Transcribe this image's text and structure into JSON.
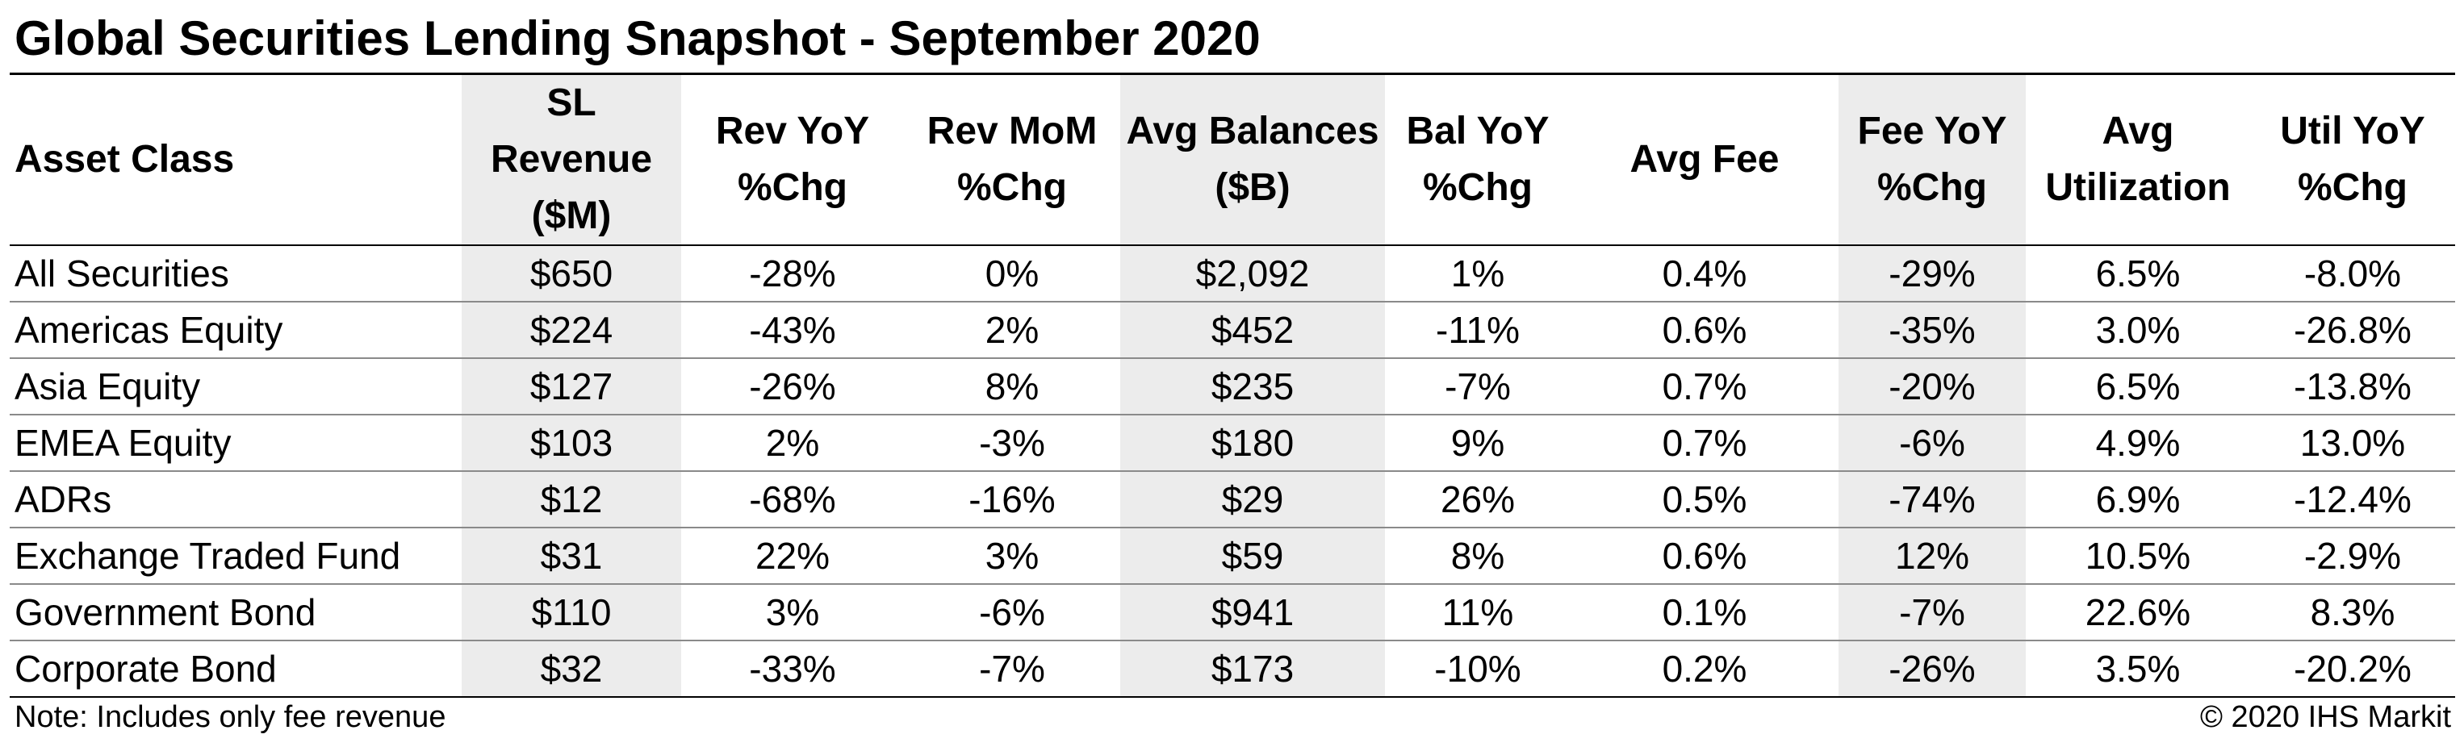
{
  "title": "Global Securities Lending Snapshot - September 2020",
  "table": {
    "headers": [
      [
        "Asset Class"
      ],
      [
        "SL Revenue",
        "($M)"
      ],
      [
        "Rev YoY",
        "%Chg"
      ],
      [
        "Rev MoM",
        "%Chg"
      ],
      [
        "Avg Balances",
        "($B)"
      ],
      [
        "Bal YoY",
        "%Chg"
      ],
      [
        "Avg Fee"
      ],
      [
        "Fee YoY",
        "%Chg"
      ],
      [
        "Avg",
        "Utilization"
      ],
      [
        "Util YoY",
        "%Chg"
      ]
    ],
    "rows": [
      [
        "All Securities",
        "$650",
        "-28%",
        "0%",
        "$2,092",
        "1%",
        "0.4%",
        "-29%",
        "6.5%",
        "-8.0%"
      ],
      [
        "Americas Equity",
        "$224",
        "-43%",
        "2%",
        "$452",
        "-11%",
        "0.6%",
        "-35%",
        "3.0%",
        "-26.8%"
      ],
      [
        "Asia Equity",
        "$127",
        "-26%",
        "8%",
        "$235",
        "-7%",
        "0.7%",
        "-20%",
        "6.5%",
        "-13.8%"
      ],
      [
        "EMEA Equity",
        "$103",
        "2%",
        "-3%",
        "$180",
        "9%",
        "0.7%",
        "-6%",
        "4.9%",
        "13.0%"
      ],
      [
        "ADRs",
        "$12",
        "-68%",
        "-16%",
        "$29",
        "26%",
        "0.5%",
        "-74%",
        "6.9%",
        "-12.4%"
      ],
      [
        "Exchange Traded Fund",
        "$31",
        "22%",
        "3%",
        "$59",
        "8%",
        "0.6%",
        "12%",
        "10.5%",
        "-2.9%"
      ],
      [
        "Government Bond",
        "$110",
        "3%",
        "-6%",
        "$941",
        "11%",
        "0.1%",
        "-7%",
        "22.6%",
        "8.3%"
      ],
      [
        "Corporate Bond",
        "$32",
        "-33%",
        "-7%",
        "$173",
        "-10%",
        "0.2%",
        "-26%",
        "3.5%",
        "-20.2%"
      ]
    ],
    "shaded_columns": [
      1,
      4,
      7
    ]
  },
  "footer": {
    "note": "Note: Includes only fee revenue",
    "copyright": "© 2020 IHS Markit"
  },
  "colors": {
    "shade": "#ececec",
    "rule": "#000000",
    "row_divider": "#8a8a8a"
  }
}
